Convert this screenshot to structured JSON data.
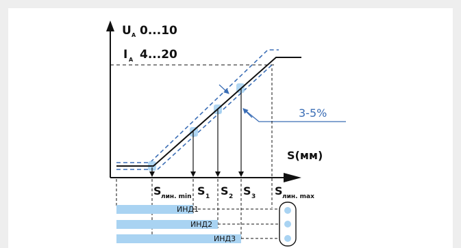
{
  "y_axis": {
    "voltage_symbol": "U",
    "voltage_subscript": "A",
    "voltage_range": "0...10",
    "current_symbol": "I",
    "current_subscript": "A",
    "current_range": "4...20"
  },
  "x_axis": {
    "label": "S(мм)"
  },
  "tolerance_label": "3-5%",
  "positions": [
    {
      "name": "S",
      "sub": "лин. min"
    },
    {
      "name": "S",
      "sub": "1"
    },
    {
      "name": "S",
      "sub": "2"
    },
    {
      "name": "S",
      "sub": "3"
    },
    {
      "name": "S",
      "sub": "лин. max"
    }
  ],
  "indicators": [
    "ИНД1",
    "ИНД2",
    "ИНД3"
  ],
  "colors": {
    "line": "#111111",
    "tolerance": "#3a6db5",
    "bar": "#a9d3f2",
    "led": "#a9d3f2"
  }
}
